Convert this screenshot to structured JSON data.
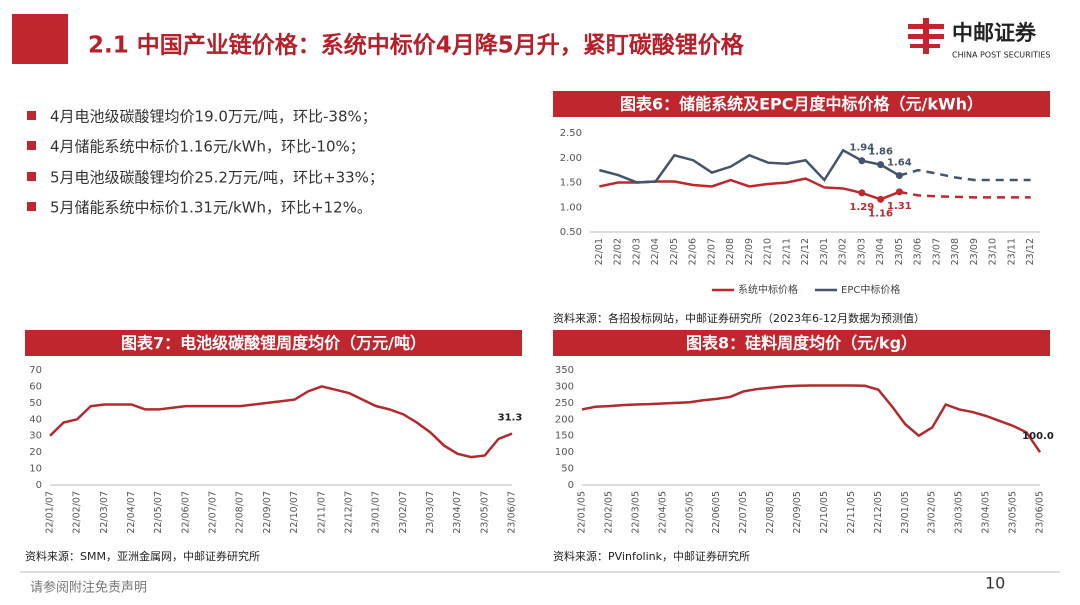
{
  "header": {
    "title": "2.1 中国产业链价格：系统中标价4月降5月升，紧盯碳酸锂价格",
    "logo": "中邮证券",
    "logo_en": "CHINA POST SECURITIES"
  },
  "bullets": [
    "4月电池级碳酸锂均价19.0万元/吨，环比-38%；",
    "4月储能系统中标价1.16元/kWh，环比-10%；",
    "5月电池级碳酸锂均价25.2万元/吨，环比+33%；",
    "5月储能系统中标价1.31元/kWh，环比+12%。"
  ],
  "chart_data": [
    {
      "type": "line",
      "title": "图表6：储能系统及EPC月度中标价格（元/kWh）",
      "categories": [
        "22/01",
        "22/02",
        "22/03",
        "22/04",
        "22/05",
        "22/06",
        "22/07",
        "22/08",
        "22/09",
        "22/10",
        "22/11",
        "22/12",
        "23/01",
        "23/02",
        "23/03",
        "23/04",
        "23/05",
        "23/06",
        "23/07",
        "23/08",
        "23/09",
        "23/10",
        "23/11",
        "23/12"
      ],
      "series": [
        {
          "name": "系统中标价格",
          "color": "#c0262d",
          "values": [
            1.42,
            1.5,
            1.5,
            1.52,
            1.52,
            1.45,
            1.42,
            1.55,
            1.42,
            1.47,
            1.5,
            1.58,
            1.4,
            1.38,
            1.29,
            1.16,
            1.31,
            1.24,
            1.22,
            1.21,
            1.2,
            1.2,
            1.2,
            1.2
          ],
          "value_labels": [
            null,
            null,
            null,
            null,
            null,
            null,
            null,
            null,
            null,
            null,
            null,
            null,
            null,
            null,
            "1.29",
            "1.16",
            "1.31",
            null,
            null,
            null,
            null,
            null,
            null,
            null
          ]
        },
        {
          "name": "EPC中标价格",
          "color": "#44546a",
          "values": [
            1.75,
            1.65,
            1.5,
            1.52,
            2.05,
            1.95,
            1.7,
            1.82,
            2.05,
            1.9,
            1.88,
            1.95,
            1.55,
            2.15,
            1.94,
            1.86,
            1.64,
            1.75,
            1.68,
            1.6,
            1.55,
            1.55,
            1.55,
            1.55
          ],
          "value_labels": [
            null,
            null,
            null,
            null,
            null,
            null,
            null,
            null,
            null,
            null,
            null,
            null,
            null,
            null,
            "1.94",
            "1.86",
            "1.64",
            null,
            null,
            null,
            null,
            null,
            null,
            null
          ]
        }
      ],
      "forecast_from": "23/05",
      "ylim": [
        0.5,
        2.5
      ],
      "yticks": [
        {
          "value": 0.5,
          "label": "0.50"
        },
        {
          "value": 1,
          "label": "1.00"
        },
        {
          "value": 1.5,
          "label": "1.50"
        },
        {
          "value": 2,
          "label": "2.00"
        },
        {
          "value": 2.5,
          "label": "2.50"
        }
      ],
      "legend": "bottom",
      "grid": false,
      "source": "资料来源：各招投标网站，中邮证券研究所（2023年6-12月数据为预测值）"
    },
    {
      "type": "line",
      "title": "图表7：电池级碳酸锂周度均价（万元/吨）",
      "categories": [
        "22/01/07",
        null,
        "22/02/07",
        null,
        "22/03/07",
        null,
        "22/04/07",
        null,
        "22/05/07",
        null,
        "22/06/07",
        null,
        "22/07/07",
        null,
        "22/08/07",
        null,
        "22/09/07",
        null,
        "22/10/07",
        null,
        "22/11/07",
        null,
        "22/12/07",
        null,
        "23/01/07",
        null,
        "23/02/07",
        null,
        "23/03/07",
        null,
        "23/04/07",
        null,
        "23/05/07",
        null,
        "23/06/07"
      ],
      "values": [
        30,
        38,
        40,
        48,
        49,
        49,
        49,
        46,
        46,
        47,
        48,
        48,
        48,
        48,
        48,
        49,
        50,
        51,
        52,
        57,
        60,
        58,
        56,
        52,
        48,
        46,
        43,
        38,
        32,
        24,
        19,
        17,
        18,
        28,
        31.3
      ],
      "value_labels": [
        null,
        null,
        null,
        null,
        null,
        null,
        null,
        null,
        null,
        null,
        null,
        null,
        null,
        null,
        null,
        null,
        null,
        null,
        null,
        null,
        null,
        null,
        null,
        null,
        null,
        null,
        null,
        null,
        null,
        null,
        null,
        null,
        null,
        null,
        "31.3"
      ],
      "color": "#b22a2e",
      "ylim": [
        0,
        70
      ],
      "yticks": [
        0,
        10,
        20,
        30,
        40,
        50,
        60,
        70
      ],
      "grid": false,
      "source": "资料来源：SMM，亚洲金属网，中邮证券研究所"
    },
    {
      "type": "line",
      "title": "图表8：硅料周度均价（元/kg）",
      "categories": [
        "22/01/05",
        null,
        "22/02/05",
        null,
        "22/03/05",
        null,
        "22/04/05",
        null,
        "22/05/05",
        null,
        "22/06/05",
        null,
        "22/07/05",
        null,
        "22/08/05",
        null,
        "22/09/05",
        null,
        "22/10/05",
        null,
        "22/11/05",
        null,
        "22/12/05",
        null,
        "23/01/05",
        null,
        "23/02/05",
        null,
        "23/03/05",
        null,
        "23/04/05",
        null,
        "23/05/05",
        null,
        "23/06/05"
      ],
      "values": [
        230,
        238,
        240,
        243,
        245,
        246,
        248,
        250,
        252,
        258,
        262,
        268,
        285,
        292,
        296,
        300,
        302,
        303,
        303,
        303,
        303,
        302,
        290,
        240,
        185,
        150,
        175,
        245,
        230,
        222,
        210,
        195,
        180,
        160,
        100
      ],
      "value_labels": [
        null,
        null,
        null,
        null,
        null,
        null,
        null,
        null,
        null,
        null,
        null,
        null,
        null,
        null,
        null,
        null,
        null,
        null,
        null,
        null,
        null,
        null,
        null,
        null,
        null,
        null,
        null,
        null,
        null,
        null,
        null,
        null,
        null,
        null,
        "100.0"
      ],
      "color": "#b22a2e",
      "ylim": [
        0,
        350
      ],
      "yticks": [
        0,
        50,
        100,
        150,
        200,
        250,
        300,
        350
      ],
      "grid": false,
      "source": "资料来源：PVinfolink，中邮证券研究所"
    }
  ],
  "footer": {
    "disclaimer": "请参阅附注免责声明",
    "page": "10"
  }
}
